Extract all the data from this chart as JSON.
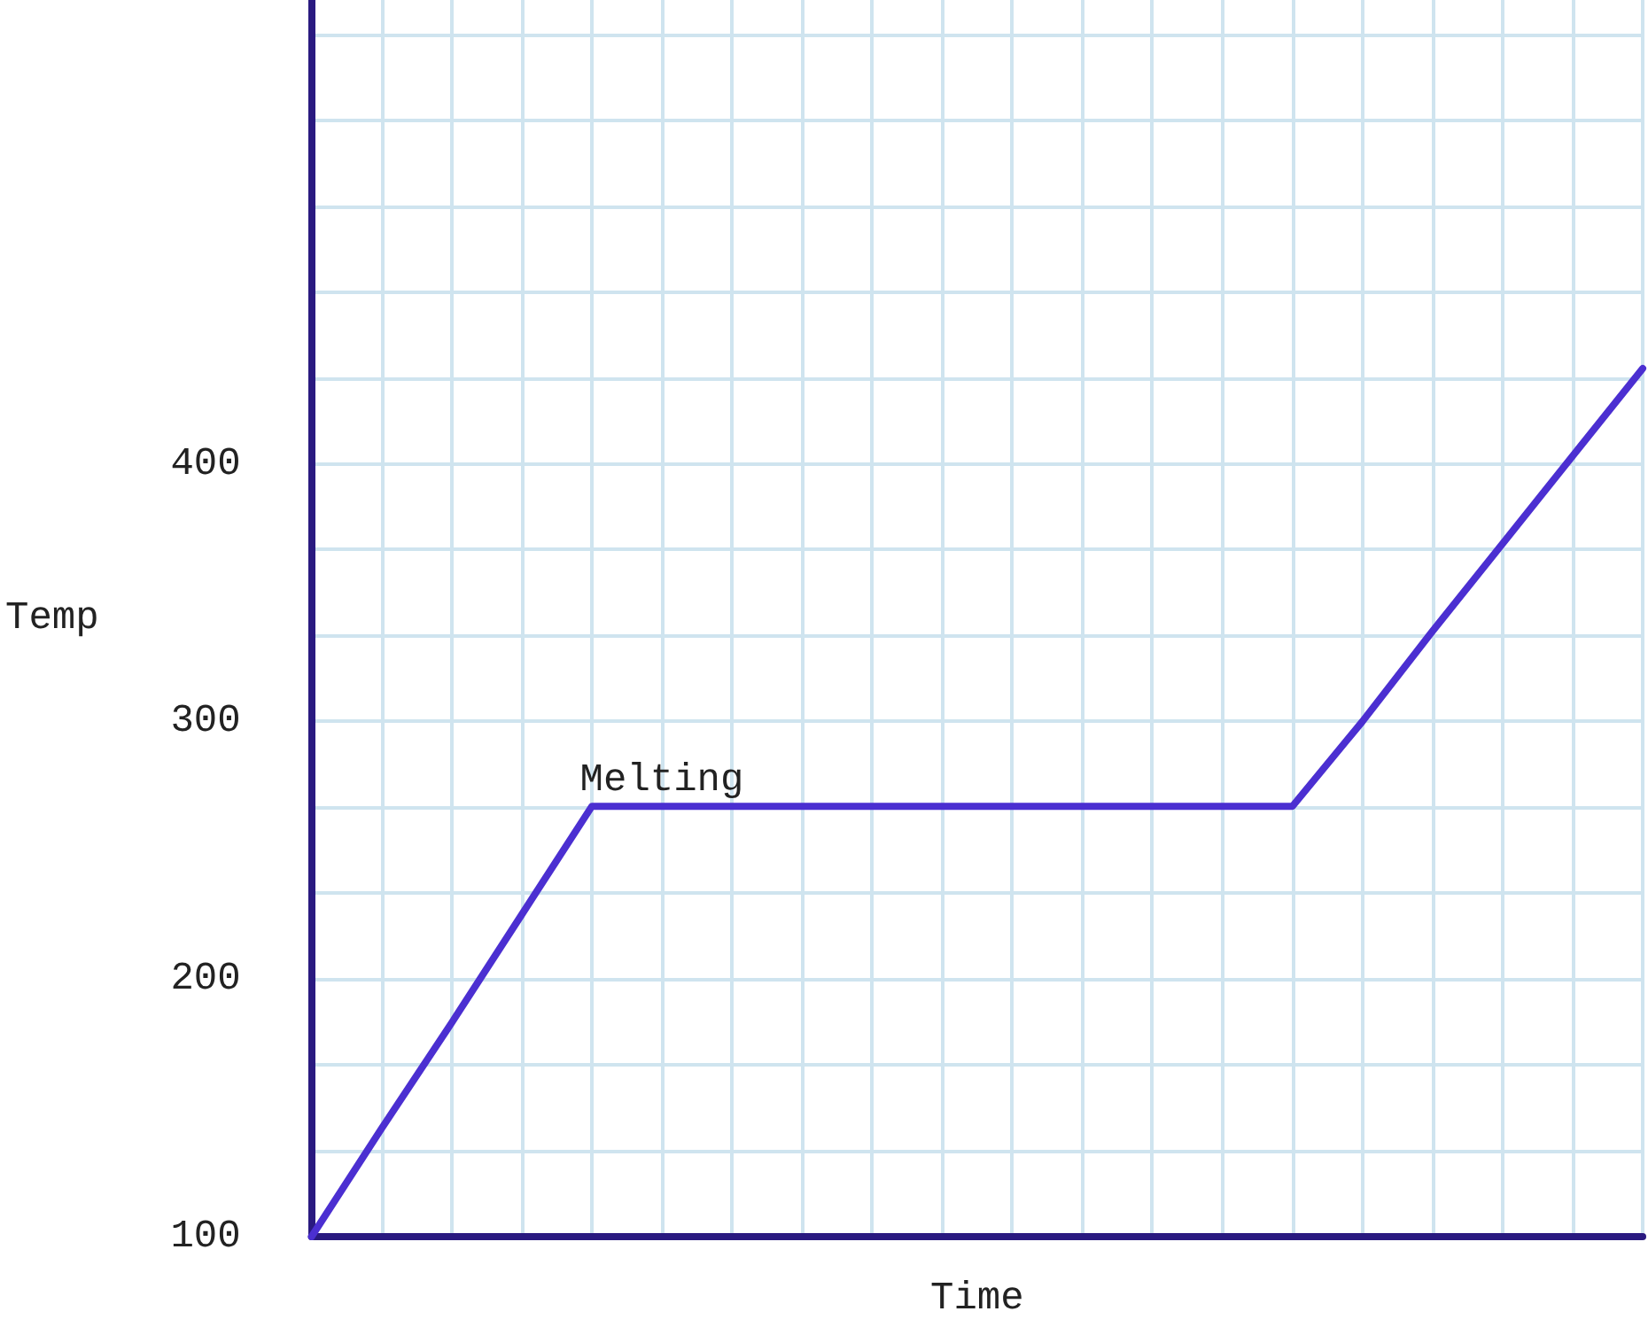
{
  "chart_data": {
    "type": "line",
    "xlabel": "Time",
    "ylabel": "Temp",
    "categories": [
      null,
      null,
      null,
      null,
      null,
      null,
      null,
      null,
      null,
      null,
      null,
      null,
      null,
      null,
      null,
      null,
      null,
      null,
      null,
      null
    ],
    "series": [
      {
        "color": "#4b2fd1",
        "values": [
          100,
          142,
          183,
          225,
          267,
          267,
          267,
          267,
          267,
          267,
          267,
          267,
          267,
          267,
          267,
          300,
          335,
          369,
          403,
          437
        ]
      }
    ],
    "ylim": [
      100,
      580
    ],
    "yticks": [
      100,
      {
        "value": 133.3,
        "label": null
      },
      {
        "value": 166.7,
        "label": null
      },
      200,
      {
        "value": 233.3,
        "label": null
      },
      {
        "value": 266.7,
        "label": null
      },
      300,
      {
        "value": 333.3,
        "label": null
      },
      {
        "value": 366.7,
        "label": null
      },
      400,
      {
        "value": 433.3,
        "label": null
      },
      {
        "value": 466.7,
        "label": null
      },
      {
        "value": 500,
        "label": null
      },
      {
        "value": 533.3,
        "label": null
      },
      {
        "value": 566.7,
        "label": null
      }
    ],
    "grid": true,
    "marker": "none",
    "line_style": "solid",
    "annotations": [
      {
        "text": "Melting",
        "y": 266.7
      }
    ]
  }
}
